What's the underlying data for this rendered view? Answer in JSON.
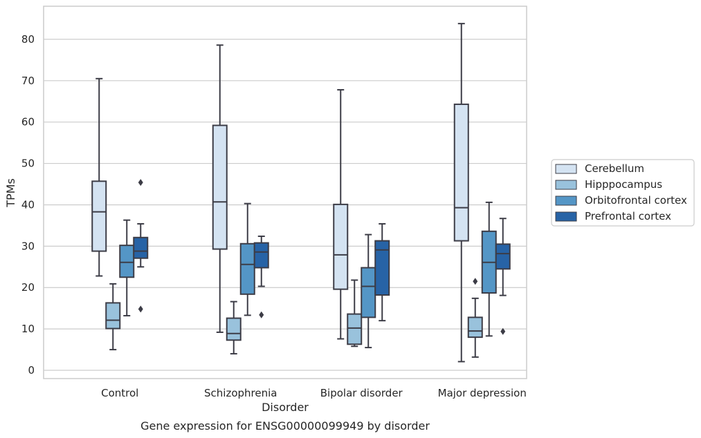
{
  "chart_data": {
    "type": "boxplot",
    "caption": "Gene expression for ENSG00000099949 by disorder",
    "xlabel": "Disorder",
    "ylabel": "TPMs",
    "ylim": [
      -2,
      88
    ],
    "yticks": [
      0,
      10,
      20,
      30,
      40,
      50,
      60,
      70,
      80
    ],
    "grid": true,
    "legend_position": "right",
    "categories": [
      "Control",
      "Schizophrenia",
      "Bipolar disorder",
      "Major depression"
    ],
    "series": [
      {
        "name": "Cerebellum",
        "color": "#d4e3f2",
        "boxes": [
          {
            "whislo": 22.8,
            "q1": 28.8,
            "med": 38.3,
            "q3": 45.7,
            "whishi": 70.5,
            "fliers": []
          },
          {
            "whislo": 9.2,
            "q1": 29.3,
            "med": 40.7,
            "q3": 59.2,
            "whishi": 78.6,
            "fliers": []
          },
          {
            "whislo": 7.6,
            "q1": 19.6,
            "med": 27.9,
            "q3": 40.1,
            "whishi": 67.8,
            "fliers": []
          },
          {
            "whislo": 2.1,
            "q1": 31.3,
            "med": 39.3,
            "q3": 64.3,
            "whishi": 83.8,
            "fliers": []
          }
        ]
      },
      {
        "name": "Hipppocampus",
        "color": "#99c2dc",
        "boxes": [
          {
            "whislo": 5.0,
            "q1": 10.1,
            "med": 12.1,
            "q3": 16.3,
            "whishi": 20.9,
            "fliers": []
          },
          {
            "whislo": 4.0,
            "q1": 7.3,
            "med": 8.9,
            "q3": 12.6,
            "whishi": 16.6,
            "fliers": []
          },
          {
            "whislo": 5.8,
            "q1": 6.3,
            "med": 10.2,
            "q3": 13.6,
            "whishi": 21.8,
            "fliers": []
          },
          {
            "whislo": 3.2,
            "q1": 8.0,
            "med": 9.5,
            "q3": 12.8,
            "whishi": 17.4,
            "fliers": [
              21.5
            ]
          }
        ]
      },
      {
        "name": "Orbitofrontal cortex",
        "color": "#5496c6",
        "boxes": [
          {
            "whislo": 13.2,
            "q1": 22.5,
            "med": 26.1,
            "q3": 30.2,
            "whishi": 36.3,
            "fliers": []
          },
          {
            "whislo": 13.3,
            "q1": 18.4,
            "med": 25.6,
            "q3": 30.6,
            "whishi": 40.3,
            "fliers": []
          },
          {
            "whislo": 5.5,
            "q1": 12.8,
            "med": 20.3,
            "q3": 24.8,
            "whishi": 32.8,
            "fliers": []
          },
          {
            "whislo": 8.3,
            "q1": 18.7,
            "med": 26.1,
            "q3": 33.6,
            "whishi": 40.6,
            "fliers": []
          }
        ]
      },
      {
        "name": "Prefrontal cortex",
        "color": "#2763a6",
        "boxes": [
          {
            "whislo": 25.0,
            "q1": 27.1,
            "med": 28.8,
            "q3": 32.1,
            "whishi": 35.4,
            "fliers": [
              45.4,
              14.8
            ]
          },
          {
            "whislo": 20.3,
            "q1": 24.8,
            "med": 28.6,
            "q3": 30.8,
            "whishi": 32.4,
            "fliers": [
              13.4
            ]
          },
          {
            "whislo": 12.0,
            "q1": 18.2,
            "med": 29.1,
            "q3": 31.3,
            "whishi": 35.4,
            "fliers": []
          },
          {
            "whislo": 18.1,
            "q1": 24.5,
            "med": 28.2,
            "q3": 30.5,
            "whishi": 36.7,
            "fliers": [
              9.4
            ]
          }
        ]
      }
    ]
  }
}
